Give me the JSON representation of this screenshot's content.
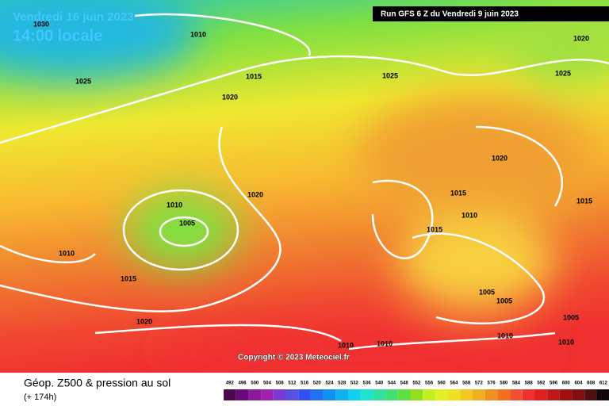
{
  "header": {
    "valid": "Vendredi 16 juin 2023",
    "local_time": "14:00 locale",
    "run": "Run GFS 6 Z du Vendredi 9 juin 2023",
    "copyright": "Copyright © 2023 Meteociel.fr"
  },
  "footer": {
    "title": "Géop. Z500 & pression au sol",
    "lead": "(+ 174h)"
  },
  "isobars": {
    "labels": [
      "1030",
      "1010",
      "1025",
      "1015",
      "1025",
      "1025",
      "1020",
      "1020",
      "1020",
      "1020",
      "1015",
      "1015",
      "1010",
      "1005",
      "1010",
      "1015",
      "1010",
      "1015",
      "1005",
      "1005",
      "1005",
      "1020",
      "1010",
      "1010",
      "1010",
      "1010"
    ]
  },
  "legend": {
    "items": [
      {
        "label": "492",
        "color": "#4b0a4b"
      },
      {
        "label": "496",
        "color": "#6a0a7a"
      },
      {
        "label": "500",
        "color": "#8a1a9a"
      },
      {
        "label": "504",
        "color": "#a020b0"
      },
      {
        "label": "508",
        "color": "#7a3cd0"
      },
      {
        "label": "512",
        "color": "#5a50e0"
      },
      {
        "label": "516",
        "color": "#3050f0"
      },
      {
        "label": "520",
        "color": "#2070f0"
      },
      {
        "label": "524",
        "color": "#1090f0"
      },
      {
        "label": "528",
        "color": "#10b0f0"
      },
      {
        "label": "532",
        "color": "#10d0f0"
      },
      {
        "label": "536",
        "color": "#20e0d0"
      },
      {
        "label": "540",
        "color": "#30e0a0"
      },
      {
        "label": "544",
        "color": "#40e070"
      },
      {
        "label": "548",
        "color": "#60e040"
      },
      {
        "label": "552",
        "color": "#90e020"
      },
      {
        "label": "556",
        "color": "#c0f020"
      },
      {
        "label": "560",
        "color": "#e0f020"
      },
      {
        "label": "564",
        "color": "#f0e020"
      },
      {
        "label": "568",
        "color": "#f0c820"
      },
      {
        "label": "572",
        "color": "#f0b020"
      },
      {
        "label": "576",
        "color": "#f09020"
      },
      {
        "label": "580",
        "color": "#f07020"
      },
      {
        "label": "584",
        "color": "#f05030"
      },
      {
        "label": "588",
        "color": "#f03030"
      },
      {
        "label": "592",
        "color": "#e02020"
      },
      {
        "label": "596",
        "color": "#c01818"
      },
      {
        "label": "600",
        "color": "#a01010"
      },
      {
        "label": "604",
        "color": "#801010"
      },
      {
        "label": "608",
        "color": "#501010"
      },
      {
        "label": "612",
        "color": "#100808"
      }
    ]
  }
}
